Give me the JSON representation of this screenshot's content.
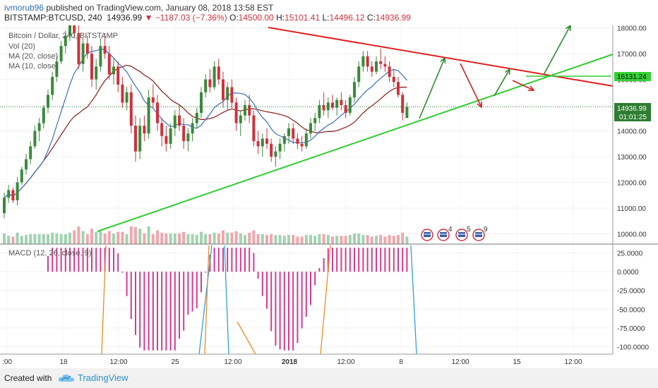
{
  "header": {
    "author": "ivmorub96",
    "published_text": "published on TradingView.com, January 08, 2018 13:58 EST",
    "symbol": "BITSTAMP:BTCUSD, 240",
    "last": "14936.99",
    "change_arrow": "▼",
    "change": "−1187.03 (−7.36%)",
    "open_label": "O:",
    "open": "14500.00",
    "high_label": "H:",
    "high": "15101.41",
    "low_label": "L:",
    "low": "14496.12",
    "close_label": "C:",
    "close": "14936.99"
  },
  "legend": {
    "title": "Bitcoin / Dollar, 240, BITSTAMP",
    "vol": "Vol (20)",
    "ma20": "MA (20, close)",
    "ma10": "MA (10, close)",
    "macd": "MACD (12, 26, close, 9)"
  },
  "footer": {
    "created_with": "Created with",
    "brand": "TradingView",
    "logo_icon": "tradingview-cloud-icon"
  },
  "colors": {
    "up": "#3a8a3a",
    "down": "#d0313c",
    "ma20": "#8b1a1a",
    "ma10": "#3a6fbf",
    "support": "#33cc33",
    "resistance": "#e02020",
    "macd_hist": "#d63a8c",
    "macd_line": "#2f9fe0",
    "signal_line": "#f08a24",
    "last_price_bg": "#2e7d32",
    "level_bg": "#35d235"
  },
  "chart_data": {
    "type": "candlestick",
    "y_axis": {
      "range": [
        9600,
        18100
      ],
      "ticks": [
        "18000.00",
        "17000.00",
        "16000.00",
        "15000.00",
        "14000.00",
        "13000.00",
        "12000.00",
        "11000.00",
        "10000.00"
      ],
      "tick_values": [
        18000,
        17000,
        16000,
        15000,
        14000,
        13000,
        12000,
        11000,
        10000
      ]
    },
    "x_axis": {
      "labels": [
        ":00",
        "18",
        "12:00",
        "25",
        "12:00",
        "2018",
        "12:00",
        "8",
        "12:00",
        "15",
        "12:00"
      ]
    },
    "last_price": "14936.99",
    "countdown": "01:01:25",
    "level_marker": "16131.24",
    "level_value": 16131.24,
    "candles_ohlc": [
      [
        10800,
        11600,
        10600,
        11400
      ],
      [
        11400,
        11900,
        11200,
        11700
      ],
      [
        11700,
        11800,
        11200,
        11300
      ],
      [
        11300,
        12200,
        11100,
        12000
      ],
      [
        12000,
        12600,
        11900,
        12500
      ],
      [
        12500,
        13100,
        12300,
        12900
      ],
      [
        12900,
        13600,
        12700,
        13400
      ],
      [
        13400,
        14200,
        13300,
        14000
      ],
      [
        14000,
        14500,
        13600,
        14300
      ],
      [
        14300,
        15000,
        14100,
        14900
      ],
      [
        14900,
        15600,
        14700,
        15400
      ],
      [
        15400,
        16300,
        15200,
        16100
      ],
      [
        16100,
        16900,
        15900,
        16700
      ],
      [
        16700,
        17500,
        16600,
        17300
      ],
      [
        17300,
        17900,
        17000,
        17700
      ],
      [
        17700,
        18600,
        17500,
        18200
      ],
      [
        18200,
        19000,
        17600,
        17800
      ],
      [
        17800,
        18300,
        16400,
        16600
      ],
      [
        16600,
        17600,
        16300,
        17400
      ],
      [
        17400,
        17700,
        16800,
        17000
      ],
      [
        17000,
        17300,
        15700,
        16000
      ],
      [
        16000,
        16800,
        15600,
        16500
      ],
      [
        16500,
        17600,
        16300,
        17300
      ],
      [
        17300,
        17800,
        16800,
        17000
      ],
      [
        17000,
        17300,
        16000,
        16200
      ],
      [
        16200,
        16800,
        15800,
        16500
      ],
      [
        16500,
        16700,
        15500,
        15800
      ],
      [
        15800,
        16100,
        14900,
        15100
      ],
      [
        15100,
        15700,
        14800,
        15500
      ],
      [
        15500,
        15800,
        13900,
        14200
      ],
      [
        14200,
        14600,
        12800,
        13200
      ],
      [
        13200,
        14500,
        12900,
        14200
      ],
      [
        14200,
        14600,
        13600,
        13900
      ],
      [
        13900,
        15600,
        13700,
        15300
      ],
      [
        15300,
        15800,
        14900,
        15100
      ],
      [
        15100,
        15400,
        14000,
        14300
      ],
      [
        14300,
        14500,
        13400,
        13800
      ],
      [
        13800,
        14200,
        13200,
        13500
      ],
      [
        13500,
        14300,
        13300,
        14100
      ],
      [
        14100,
        14800,
        13800,
        14600
      ],
      [
        14600,
        15000,
        14000,
        14200
      ],
      [
        14200,
        14500,
        13300,
        13600
      ],
      [
        13600,
        14100,
        13200,
        13900
      ],
      [
        13900,
        14500,
        13600,
        14300
      ],
      [
        14300,
        14900,
        14100,
        14700
      ],
      [
        14700,
        15700,
        14500,
        15500
      ],
      [
        15500,
        16200,
        15300,
        16000
      ],
      [
        16000,
        16400,
        15500,
        15700
      ],
      [
        15700,
        16700,
        15600,
        16500
      ],
      [
        16500,
        16800,
        15800,
        16000
      ],
      [
        16000,
        16300,
        14900,
        15200
      ],
      [
        15200,
        15900,
        14800,
        15700
      ],
      [
        15700,
        16000,
        14900,
        15100
      ],
      [
        15100,
        15300,
        14000,
        14300
      ],
      [
        14300,
        14800,
        13800,
        14600
      ],
      [
        14600,
        15200,
        14400,
        15000
      ],
      [
        15000,
        15400,
        14300,
        14600
      ],
      [
        14600,
        14800,
        13400,
        13600
      ],
      [
        13600,
        14000,
        13100,
        13400
      ],
      [
        13400,
        13900,
        13000,
        13700
      ],
      [
        13700,
        14100,
        13300,
        13500
      ],
      [
        13500,
        13700,
        12800,
        13000
      ],
      [
        13000,
        13400,
        12600,
        13200
      ],
      [
        13200,
        13700,
        12900,
        13500
      ],
      [
        13500,
        13900,
        13200,
        13800
      ],
      [
        13800,
        14300,
        13500,
        14100
      ],
      [
        14100,
        14300,
        13500,
        13700
      ],
      [
        13700,
        13900,
        13300,
        13500
      ],
      [
        13500,
        13800,
        13200,
        13400
      ],
      [
        13400,
        14100,
        13300,
        13900
      ],
      [
        13900,
        14500,
        13700,
        14300
      ],
      [
        14300,
        14700,
        14000,
        14500
      ],
      [
        14500,
        15200,
        14300,
        15000
      ],
      [
        15000,
        15500,
        14600,
        14800
      ],
      [
        14800,
        15300,
        14500,
        15100
      ],
      [
        15100,
        15400,
        14800,
        14900
      ],
      [
        14900,
        15300,
        14600,
        15200
      ],
      [
        15200,
        15500,
        14800,
        15000
      ],
      [
        15000,
        15200,
        14500,
        14700
      ],
      [
        14700,
        15400,
        14600,
        15300
      ],
      [
        15300,
        16100,
        15100,
        15900
      ],
      [
        15900,
        16700,
        15700,
        16500
      ],
      [
        16500,
        17100,
        16300,
        16900
      ],
      [
        16900,
        17100,
        16300,
        16500
      ],
      [
        16500,
        16700,
        16100,
        16300
      ],
      [
        16300,
        16900,
        16200,
        16700
      ],
      [
        16700,
        17200,
        16400,
        16600
      ],
      [
        16600,
        16900,
        16300,
        16500
      ],
      [
        16500,
        16700,
        15900,
        16100
      ],
      [
        16100,
        16400,
        15700,
        15900
      ],
      [
        15900,
        16100,
        15300,
        15400
      ],
      [
        15400,
        15500,
        14400,
        14700
      ],
      [
        14500,
        15101.41,
        14496.12,
        14936.99
      ]
    ],
    "annotations": [
      {
        "type": "trendline",
        "color": "resistance",
        "from": [
          0.48,
          18500
        ],
        "to": [
          1.0,
          15800
        ]
      },
      {
        "type": "trendline",
        "color": "support",
        "from": [
          0.16,
          10150
        ],
        "to": [
          1.0,
          16950
        ]
      },
      {
        "type": "horizontal",
        "color": "support",
        "value": 16131.24
      }
    ],
    "macd": {
      "title": "MACD (12, 26, close, 9)",
      "range": [
        -110,
        35
      ],
      "ticks": [
        "25.0000",
        "0.0000",
        "-25.0000",
        "-50.0000",
        "-75.0000",
        "-100.0000"
      ],
      "tick_values": [
        25,
        0,
        -25,
        -50,
        -75,
        -100
      ]
    }
  }
}
